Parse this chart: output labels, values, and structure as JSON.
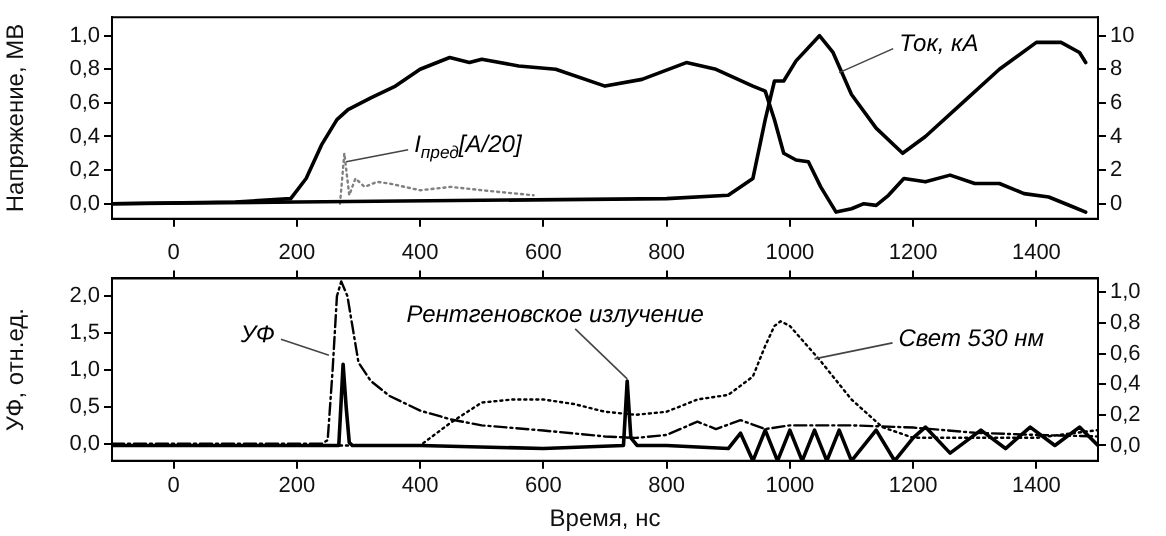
{
  "chart_data": [
    {
      "type": "line",
      "ylabel": "Напряжение, МВ",
      "tick_labels": "y",
      "xlim": [
        -100,
        1500
      ],
      "xticks": [
        0,
        200,
        400,
        600,
        800,
        1000,
        1200,
        1400
      ],
      "ylim": [
        -0.09,
        1.11
      ],
      "yticks": [
        {
          "value": 0,
          "label": "0,0"
        },
        {
          "value": 0.2,
          "label": "0,2"
        },
        {
          "value": 0.4,
          "label": "0,4"
        },
        {
          "value": 0.6,
          "label": "0,6"
        },
        {
          "value": 0.8,
          "label": "0,8"
        },
        {
          "value": 1,
          "label": "1,0"
        }
      ],
      "y2lim": [
        -0.9,
        11.1
      ],
      "y2ticks": [
        0,
        2,
        4,
        6,
        8,
        10
      ],
      "series": [
        {
          "color": "#000000",
          "line_style": "solid",
          "x": [
            -100,
            100,
            190,
            215,
            240,
            265,
            283,
            320,
            360,
            400,
            448,
            480,
            500,
            560,
            620,
            700,
            760,
            832,
            880,
            940,
            960,
            975,
            990,
            1010,
            1030,
            1050,
            1075,
            1100,
            1120,
            1140,
            1160,
            1185,
            1220,
            1260,
            1300,
            1340,
            1380,
            1420,
            1460,
            1480
          ],
          "values": [
            0,
            0.01,
            0.03,
            0.15,
            0.35,
            0.5,
            0.56,
            0.63,
            0.7,
            0.8,
            0.87,
            0.84,
            0.86,
            0.82,
            0.8,
            0.7,
            0.74,
            0.84,
            0.8,
            0.7,
            0.67,
            0.5,
            0.3,
            0.26,
            0.25,
            0.1,
            -0.05,
            -0.03,
            0,
            -0.01,
            0.05,
            0.15,
            0.13,
            0.17,
            0.12,
            0.12,
            0.06,
            0.04,
            -0.02,
            -0.05
          ]
        },
        {
          "color": "#000000",
          "line_style": "solid",
          "axis": "y2",
          "x": [
            -100,
            200,
            500,
            800,
            900,
            940,
            960,
            975,
            990,
            1010,
            1048,
            1070,
            1100,
            1140,
            1183,
            1220,
            1280,
            1340,
            1400,
            1440,
            1470,
            1480
          ],
          "values": [
            0,
            0.1,
            0.2,
            0.3,
            0.5,
            1.5,
            5,
            7.3,
            7.3,
            8.5,
            10,
            9,
            6.5,
            4.5,
            3,
            4,
            6,
            8,
            9.6,
            9.6,
            9,
            8.4
          ]
        },
        {
          "color": "#808080",
          "line_style": "dotted",
          "x": [
            270,
            277,
            285,
            295,
            310,
            330,
            350,
            400,
            450,
            500,
            584
          ],
          "values": [
            0,
            0.3,
            0.05,
            0.15,
            0.1,
            0.13,
            0.12,
            0.08,
            0.1,
            0.08,
            0.05
          ]
        }
      ],
      "annotations": [
        {
          "text": "I$_{пред}$[A/20]",
          "x": 280,
          "y": 0.25
        },
        {
          "text": "Ток, кА",
          "x": 1080,
          "y": 0.78
        }
      ]
    },
    {
      "type": "line",
      "ylabel": "УФ, отн.ед.",
      "xlabel": "Время, нс",
      "xlim": [
        -100,
        1500
      ],
      "xticks": [
        0,
        200,
        400,
        600,
        800,
        1000,
        1200,
        1400
      ],
      "x2lim": [
        -100,
        1500
      ],
      "x2ticks": [
        0,
        200,
        400,
        600,
        800,
        1000,
        1200,
        1400
      ],
      "ylim": [
        -0.23,
        2.24
      ],
      "yticks": [
        {
          "value": 0,
          "label": "0,0"
        },
        {
          "value": 0.5,
          "label": "0,5"
        },
        {
          "value": 1,
          "label": "1,0"
        },
        {
          "value": 1.5,
          "label": "1,5"
        },
        {
          "value": 2,
          "label": "2,0"
        }
      ],
      "y2lim": [
        -0.1,
        1.09
      ],
      "y2ticks": [
        {
          "value": 0,
          "label": "0,0"
        },
        {
          "value": 0.2,
          "label": "0,2"
        },
        {
          "value": 0.4,
          "label": "0,4"
        },
        {
          "value": 0.6,
          "label": "0,6"
        },
        {
          "value": 0.8,
          "label": "0,8"
        },
        {
          "value": 1,
          "label": "1,0"
        }
      ],
      "series": [
        {
          "color": "#000000",
          "line_style": "dashed",
          "x": [
            -100,
            240,
            250,
            258,
            265,
            272,
            282,
            292,
            300,
            320,
            350,
            400,
            450,
            500,
            600,
            700,
            750,
            800,
            850,
            880,
            920,
            960,
            1000,
            1100,
            1200,
            1300,
            1400,
            1500
          ],
          "values": [
            0,
            0,
            0.05,
            1,
            2,
            2.2,
            2,
            1.5,
            1.1,
            0.85,
            0.65,
            0.45,
            0.33,
            0.25,
            0.18,
            0.1,
            0.08,
            0.12,
            0.3,
            0.2,
            0.32,
            0.2,
            0.25,
            0.25,
            0.22,
            0.15,
            0.12,
            0.1
          ]
        },
        {
          "color": "#000000",
          "line_style": "solid",
          "axis": "y2",
          "x": [
            -100,
            200,
            268,
            272,
            275,
            280,
            285,
            290,
            300,
            400,
            600,
            730,
            736,
            742,
            752,
            800,
            900,
            920,
            940,
            960,
            980,
            1000,
            1020,
            1040,
            1060,
            1080,
            1100,
            1140,
            1170,
            1200,
            1220,
            1260,
            1310,
            1350,
            1390,
            1430,
            1470,
            1500
          ],
          "values": [
            0,
            0,
            0,
            0.3,
            0.53,
            0.25,
            0.02,
            0,
            0,
            0,
            -0.02,
            0,
            0.42,
            0.05,
            0,
            0,
            -0.02,
            0.08,
            -0.1,
            0.1,
            -0.1,
            0.1,
            -0.1,
            0.1,
            -0.1,
            0.1,
            -0.1,
            0.1,
            -0.1,
            0.05,
            0.12,
            -0.05,
            0.1,
            -0.02,
            0.12,
            0,
            0.12,
            0
          ]
        },
        {
          "color": "#000000",
          "line_style": "dotted",
          "axis": "y2",
          "x": [
            -100,
            400,
            450,
            500,
            550,
            600,
            650,
            700,
            750,
            800,
            850,
            900,
            940,
            960,
            975,
            985,
            1000,
            1050,
            1100,
            1150,
            1200,
            1300,
            1400,
            1500
          ],
          "values": [
            0,
            0,
            0.15,
            0.28,
            0.3,
            0.3,
            0.27,
            0.22,
            0.2,
            0.22,
            0.3,
            0.33,
            0.45,
            0.65,
            0.78,
            0.81,
            0.78,
            0.55,
            0.3,
            0.12,
            0.05,
            0.05,
            0.05,
            0.1
          ]
        }
      ],
      "annotations": [
        {
          "text": "УФ",
          "x": 252,
          "y": 1.2
        },
        {
          "text": "Рентгеновское излучение",
          "x": 736,
          "y": 0.88
        },
        {
          "text": "Свет 530 нм",
          "x": 1040,
          "y": 1.15
        }
      ]
    }
  ]
}
